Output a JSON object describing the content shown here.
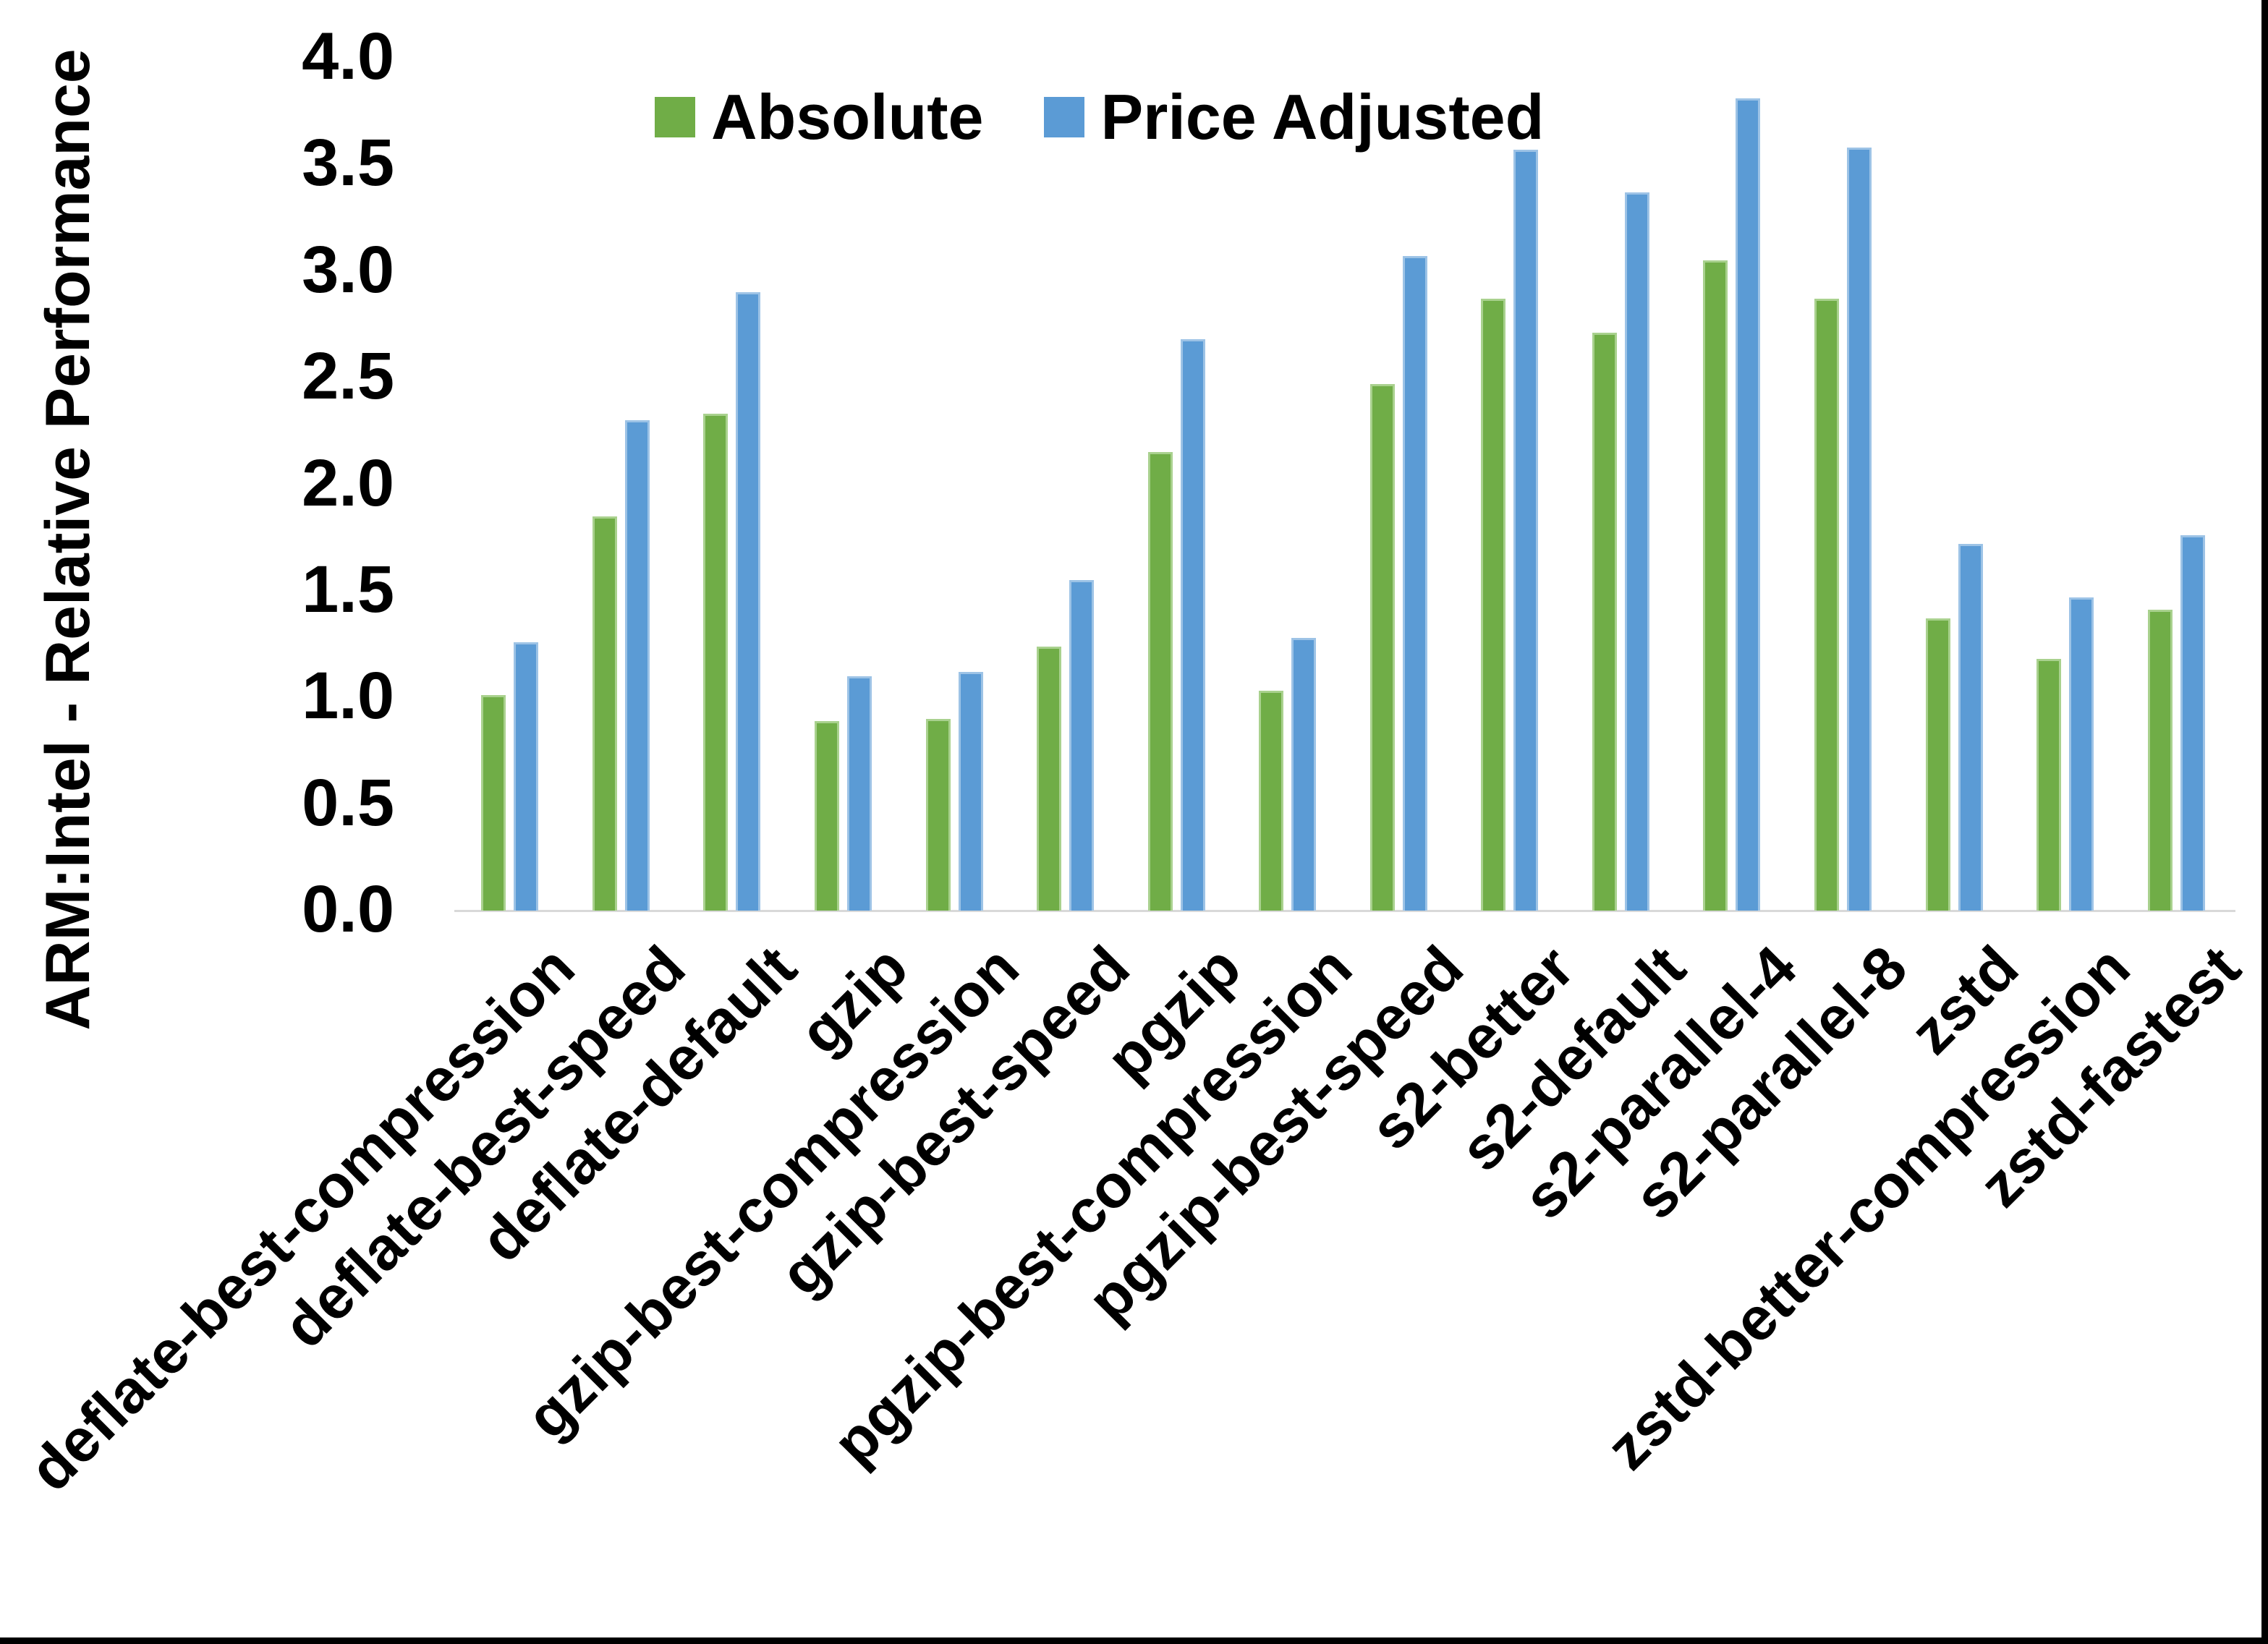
{
  "chart_data": {
    "type": "bar",
    "title": "",
    "xlabel": "",
    "ylabel": "ARM:Intel - Relative Performance",
    "ylim": [
      0.0,
      4.0
    ],
    "ytick_step": 0.5,
    "ytick_labels": [
      "0.0",
      "0.5",
      "1.0",
      "1.5",
      "2.0",
      "2.5",
      "3.0",
      "3.5",
      "4.0"
    ],
    "grid": false,
    "legend_position": "top-center",
    "categories": [
      "deflate-best-compression",
      "deflate-best-speed",
      "deflate-default",
      "gzip",
      "gzip-best-compression",
      "gzip-best-speed",
      "pgzip",
      "pgzip-best-compression",
      "pgzip-best-speed",
      "s2-better",
      "s2-default",
      "s2-parallel-4",
      "s2-parallel-8",
      "zstd",
      "zstd-better-compression",
      "zstd-fastest"
    ],
    "series": [
      {
        "name": "Absolute",
        "color": "#70AD47",
        "values": [
          1.01,
          1.85,
          2.33,
          0.89,
          0.9,
          1.24,
          2.15,
          1.03,
          2.47,
          2.87,
          2.71,
          3.05,
          2.87,
          1.37,
          1.18,
          1.41
        ]
      },
      {
        "name": "Price Adjusted",
        "color": "#5B9BD5",
        "values": [
          1.26,
          2.3,
          2.9,
          1.1,
          1.12,
          1.55,
          2.68,
          1.28,
          3.07,
          3.57,
          3.37,
          3.81,
          3.58,
          1.72,
          1.47,
          1.76
        ]
      }
    ]
  },
  "frame": {
    "right_edge_color": "#000000",
    "bottom_edge_color": "#000000"
  }
}
